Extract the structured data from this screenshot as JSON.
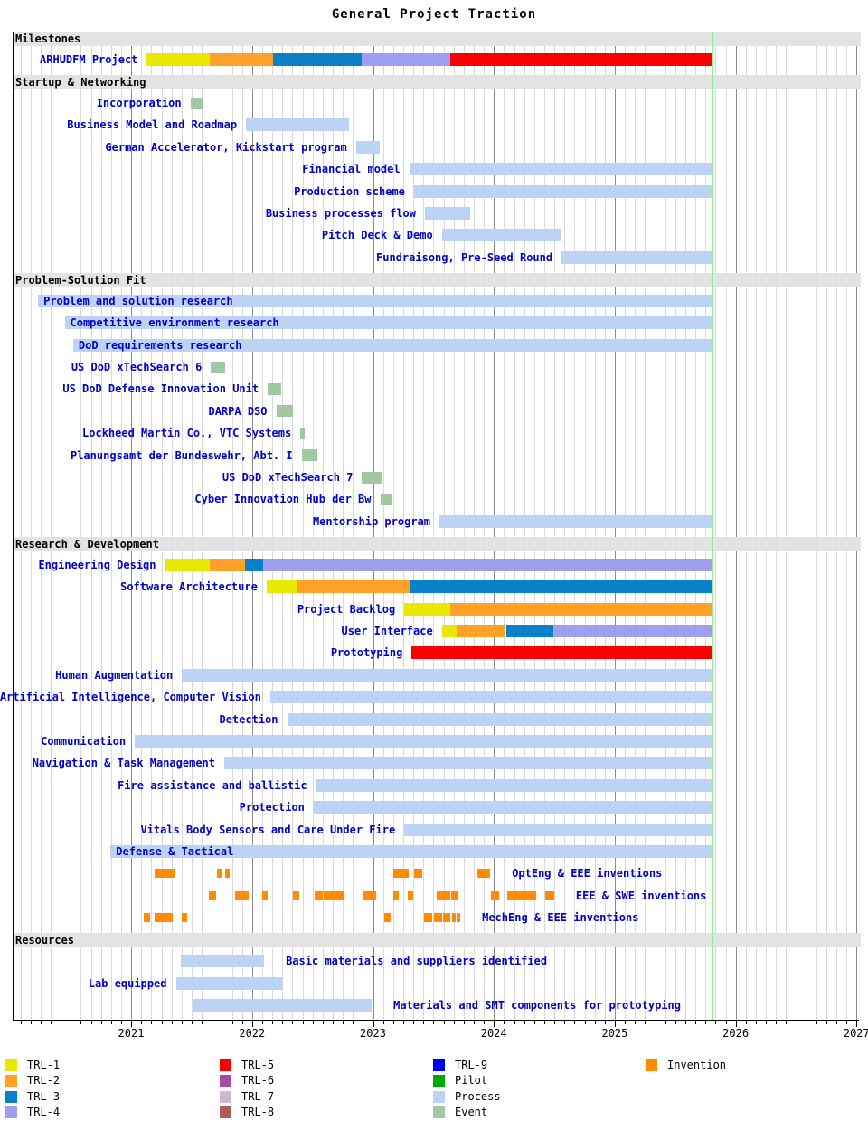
{
  "title": "General Project Traction",
  "colors": {
    "TRL-1": "#e8e800",
    "TRL-2": "#ffa126",
    "TRL-3": "#0a80c8",
    "TRL-4": "#9f9ff0",
    "TRL-5": "#fa0000",
    "TRL-6": "#a64ca6",
    "TRL-7": "#cbb8d2",
    "TRL-8": "#b05a5a",
    "TRL-9": "#0000f0",
    "Pilot": "#00a800",
    "Process": "#bdd3f6",
    "Event": "#a2c8a2",
    "Invention": "#ff8c00",
    "today_line": "#90ee90",
    "label_text": "#0000cd",
    "section_band": "#e3e3e3",
    "grid_minor": "#d9d9d9",
    "grid_year": "#8c8c8c"
  },
  "chart_data": {
    "type": "gantt",
    "title": "General Project Traction",
    "xlabel": "",
    "ylabel": "",
    "axis": {
      "year_start": 2020.02,
      "year_end": 2027.02,
      "years": [
        "2021",
        "2022",
        "2023",
        "2024",
        "2025",
        "2026",
        "2027"
      ],
      "today": 2025.806,
      "grid": "monthly"
    },
    "sections": [
      {
        "name": "Milestones",
        "rows": [
          {
            "label": "ARHUDFM Project",
            "pos": "left",
            "bars": [
              [
                "TRL-1",
                2021.13,
                2021.65
              ],
              [
                "TRL-2",
                2021.65,
                2022.17
              ],
              [
                "TRL-3",
                2022.17,
                2022.91
              ],
              [
                "TRL-4",
                2022.91,
                2023.64
              ],
              [
                "TRL-5",
                2023.64,
                2025.8
              ]
            ]
          }
        ]
      },
      {
        "name": "Startup & Networking",
        "rows": [
          {
            "label": "Incorporation",
            "pos": "left",
            "bars": [
              [
                "Event",
                2021.49,
                2021.59
              ]
            ]
          },
          {
            "label": "Business Model and Roadmap",
            "pos": "left",
            "bars": [
              [
                "Process",
                2021.95,
                2022.8
              ]
            ]
          },
          {
            "label": "German Accelerator, Kickstart program",
            "pos": "left",
            "bars": [
              [
                "Process",
                2022.86,
                2023.06
              ]
            ]
          },
          {
            "label": "Financial model",
            "pos": "left",
            "bars": [
              [
                "Process",
                2023.3,
                2025.8
              ]
            ]
          },
          {
            "label": "Production scheme",
            "pos": "left",
            "bars": [
              [
                "Process",
                2023.34,
                2025.8
              ]
            ]
          },
          {
            "label": "Business processes flow",
            "pos": "left",
            "bars": [
              [
                "Process",
                2023.43,
                2023.8
              ]
            ]
          },
          {
            "label": "Pitch Deck & Demo",
            "pos": "left",
            "bars": [
              [
                "Process",
                2023.57,
                2024.55
              ]
            ]
          },
          {
            "label": "Fundraisong, Pre-Seed Round",
            "pos": "left",
            "bars": [
              [
                "Process",
                2024.56,
                2025.8
              ]
            ]
          }
        ]
      },
      {
        "name": "Problem-Solution Fit",
        "rows": [
          {
            "label": "Problem and solution research",
            "pos": "inside",
            "bars": [
              [
                "Process",
                2020.23,
                2025.8
              ]
            ]
          },
          {
            "label": "Competitive environment research",
            "pos": "inside",
            "bars": [
              [
                "Process",
                2020.45,
                2025.8
              ]
            ]
          },
          {
            "label": "DoD requirements research",
            "pos": "inside",
            "bars": [
              [
                "Process",
                2020.52,
                2025.8
              ]
            ]
          },
          {
            "label": "US DoD xTechSearch 6",
            "pos": "left",
            "bars": [
              [
                "Event",
                2021.66,
                2021.78
              ]
            ]
          },
          {
            "label": "US DoD Defense Innovation Unit",
            "pos": "left",
            "bars": [
              [
                "Event",
                2022.13,
                2022.24
              ]
            ]
          },
          {
            "label": "DARPA DSO",
            "pos": "left",
            "bars": [
              [
                "Event",
                2022.2,
                2022.34
              ]
            ]
          },
          {
            "label": "Lockheed Martin Co., VTC Systems",
            "pos": "left",
            "bars": [
              [
                "Event",
                2022.4,
                2022.44
              ]
            ]
          },
          {
            "label": "Planungsamt der Bundeswehr, Abt. I",
            "pos": "left",
            "bars": [
              [
                "Event",
                2022.41,
                2022.54
              ]
            ]
          },
          {
            "label": "US DoD xTechSearch 7",
            "pos": "left",
            "bars": [
              [
                "Event",
                2022.91,
                2023.07
              ]
            ]
          },
          {
            "label": "Cyber Innovation Hub der Bw",
            "pos": "left",
            "bars": [
              [
                "Event",
                2023.06,
                2023.16
              ]
            ]
          },
          {
            "label": "Mentorship program",
            "pos": "left",
            "bars": [
              [
                "Process",
                2023.55,
                2025.8
              ]
            ]
          }
        ]
      },
      {
        "name": "Research & Development",
        "rows": [
          {
            "label": "Engineering Design",
            "pos": "left",
            "bars": [
              [
                "TRL-1",
                2021.28,
                2021.65
              ],
              [
                "TRL-2",
                2021.65,
                2021.94
              ],
              [
                "TRL-3",
                2021.94,
                2022.09
              ],
              [
                "TRL-4",
                2022.09,
                2025.8
              ]
            ]
          },
          {
            "label": "Software Architecture",
            "pos": "left",
            "bars": [
              [
                "TRL-1",
                2022.12,
                2022.37
              ],
              [
                "TRL-2",
                2022.37,
                2023.31
              ],
              [
                "TRL-3",
                2023.31,
                2025.8
              ]
            ]
          },
          {
            "label": "Project Backlog",
            "pos": "left",
            "bars": [
              [
                "TRL-1",
                2023.26,
                2023.64
              ],
              [
                "TRL-2",
                2023.64,
                2025.8
              ]
            ]
          },
          {
            "label": "User Interface",
            "pos": "left",
            "bars": [
              [
                "TRL-1",
                2023.57,
                2023.69
              ],
              [
                "TRL-2",
                2023.69,
                2024.1
              ],
              [
                "TRL-3",
                2024.1,
                2024.49
              ],
              [
                "TRL-4",
                2024.49,
                2025.8
              ]
            ]
          },
          {
            "label": "Prototyping",
            "pos": "left",
            "bars": [
              [
                "TRL-5",
                2023.32,
                2025.8
              ]
            ]
          },
          {
            "label": "Human Augmentation",
            "pos": "left",
            "bars": [
              [
                "Process",
                2021.42,
                2025.8
              ]
            ]
          },
          {
            "label": "Artificial Intelligence, Computer Vision",
            "pos": "left",
            "bars": [
              [
                "Process",
                2022.15,
                2025.8
              ]
            ]
          },
          {
            "label": "Detection",
            "pos": "left",
            "bars": [
              [
                "Process",
                2022.29,
                2025.8
              ]
            ]
          },
          {
            "label": "Communication",
            "pos": "left",
            "bars": [
              [
                "Process",
                2021.03,
                2025.8
              ]
            ]
          },
          {
            "label": "Navigation & Task Management",
            "pos": "left",
            "bars": [
              [
                "Process",
                2021.77,
                2025.8
              ]
            ]
          },
          {
            "label": "Fire assistance and ballistic",
            "pos": "left",
            "bars": [
              [
                "Process",
                2022.53,
                2025.8
              ]
            ]
          },
          {
            "label": "Protection",
            "pos": "left",
            "bars": [
              [
                "Process",
                2022.51,
                2025.8
              ]
            ]
          },
          {
            "label": "Vitals Body Sensors and Care Under Fire",
            "pos": "left",
            "bars": [
              [
                "Process",
                2023.26,
                2025.8
              ]
            ]
          },
          {
            "label": "Defense & Tactical",
            "pos": "inside",
            "bars": [
              [
                "Process",
                2020.83,
                2025.8
              ]
            ]
          },
          {
            "label": "OptEng & EEE inventions",
            "pos": "right",
            "bars": [
              [
                "Invention",
                2021.196,
                2021.36
              ],
              [
                "Invention",
                2021.712,
                2021.749
              ],
              [
                "Invention",
                2021.779,
                2021.816
              ],
              [
                "Invention",
                2023.17,
                2023.297
              ],
              [
                "Invention",
                2023.342,
                2023.409
              ],
              [
                "Invention",
                2023.865,
                2023.97
              ]
            ]
          },
          {
            "label": "EEE & SWE inventions",
            "pos": "right",
            "bars": [
              [
                "Invention",
                2021.644,
                2021.704
              ],
              [
                "Invention",
                2021.861,
                2021.974
              ],
              [
                "Invention",
                2022.086,
                2022.131
              ],
              [
                "Invention",
                2022.34,
                2022.392
              ],
              [
                "Invention",
                2022.519,
                2022.587
              ],
              [
                "Invention",
                2022.594,
                2022.758
              ],
              [
                "Invention",
                2022.923,
                2023.028
              ],
              [
                "Invention",
                2023.17,
                2023.215
              ],
              [
                "Invention",
                2023.289,
                2023.334
              ],
              [
                "Invention",
                2023.529,
                2023.641
              ],
              [
                "Invention",
                2023.648,
                2023.708
              ],
              [
                "Invention",
                2023.977,
                2024.044
              ],
              [
                "Invention",
                2024.111,
                2024.35
              ],
              [
                "Invention",
                2024.424,
                2024.499
              ]
            ]
          },
          {
            "label": "MechEng & EEE inventions",
            "pos": "right",
            "bars": [
              [
                "Invention",
                2021.106,
                2021.158
              ],
              [
                "Invention",
                2021.196,
                2021.345
              ],
              [
                "Invention",
                2021.42,
                2021.465
              ],
              [
                "Invention",
                2023.095,
                2023.147
              ],
              [
                "Invention",
                2023.424,
                2023.491
              ],
              [
                "Invention",
                2023.506,
                2023.573
              ],
              [
                "Invention",
                2023.581,
                2023.641
              ],
              [
                "Invention",
                2023.656,
                2023.686
              ],
              [
                "Invention",
                2023.693,
                2023.723
              ]
            ]
          }
        ]
      },
      {
        "name": "Resources",
        "rows": [
          {
            "label": "Basic materials and suppliers identified",
            "pos": "right",
            "bars": [
              [
                "Process",
                2021.41,
                2022.1
              ]
            ]
          },
          {
            "label": "Lab equipped",
            "pos": "left",
            "bars": [
              [
                "Process",
                2021.37,
                2022.25
              ]
            ]
          },
          {
            "label": "Materials and SMT components for prototyping",
            "pos": "right",
            "bars": [
              [
                "Process",
                2021.51,
                2022.99
              ]
            ]
          }
        ]
      }
    ],
    "legend": {
      "position": "bottom",
      "columns": [
        [
          "TRL-1",
          "TRL-2",
          "TRL-3",
          "TRL-4"
        ],
        [
          "TRL-5",
          "TRL-6",
          "TRL-7",
          "TRL-8"
        ],
        [
          "TRL-9",
          "Pilot",
          "Process",
          "Event"
        ],
        [
          "Invention"
        ]
      ]
    }
  }
}
